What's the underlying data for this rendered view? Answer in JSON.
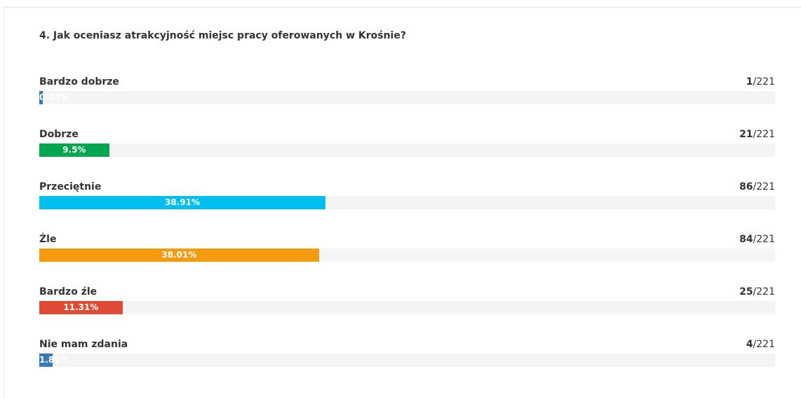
{
  "chart_data": {
    "type": "bar",
    "title": "4. Jak oceniasz atrakcyjność miejsc pracy oferowanych w Krośnie?",
    "categories": [
      "Bardzo dobrze",
      "Dobrze",
      "Przeciętnie",
      "Źle",
      "Bardzo źle",
      "Nie mam zdania"
    ],
    "values": [
      0.45,
      9.5,
      38.91,
      38.01,
      11.31,
      1.81
    ],
    "value_labels": [
      "0.45%",
      "9.5%",
      "38.91%",
      "38.01%",
      "11.31%",
      "1.81%"
    ],
    "counts": [
      1,
      21,
      86,
      84,
      25,
      4
    ],
    "totals": [
      "/221",
      "/221",
      "/221",
      "/221",
      "/221",
      "/221"
    ],
    "colors": [
      "#337ab7",
      "#00a650",
      "#00bfef",
      "#f39c12",
      "#e04b35",
      "#337ab7"
    ],
    "xlim": [
      0,
      100
    ]
  }
}
